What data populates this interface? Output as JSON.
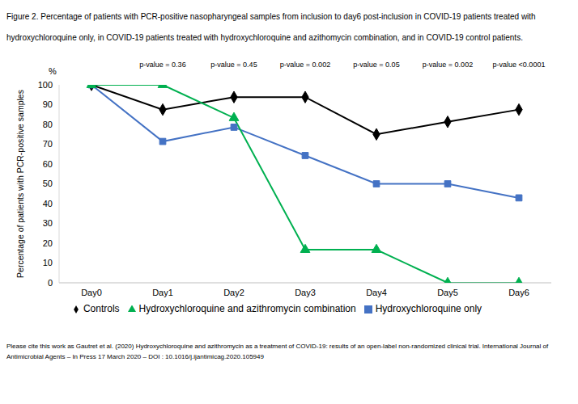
{
  "chart_data": {
    "type": "line",
    "title": "Figure 2. Percentage of patients with PCR-positive nasopharyngeal samples from inclusion to day6 post-inclusion in COVID-19 patients treated with hydroxychloroquine only, in COVID-19 patients treated with hydroxychloroquine and azithomycin combination, and in COVID-19 control patients.",
    "y_label": "Percentage of patients with PCR-positive samples",
    "y_unit": "%",
    "categories": [
      "Day0",
      "Day1",
      "Day2",
      "Day3",
      "Day4",
      "Day5",
      "Day6"
    ],
    "series": [
      {
        "name": "Controls",
        "color": "#000000",
        "marker": "diamond",
        "values": [
          100,
          87.5,
          93.8,
          93.8,
          75,
          81.3,
          87.5
        ]
      },
      {
        "name": "Hydroxychloroquine only",
        "color": "#4472c4",
        "marker": "square",
        "values": [
          100,
          71.4,
          78.6,
          64.3,
          50,
          50,
          42.9
        ]
      },
      {
        "name": "Hydroxychloroquine and azithromycin combination",
        "color": "#00b050",
        "marker": "triangle",
        "values": [
          100,
          100,
          83.3,
          16.7,
          16.7,
          0,
          0
        ]
      }
    ],
    "ylim": [
      0,
      100
    ],
    "yticks": [
      0,
      10,
      20,
      30,
      40,
      50,
      60,
      70,
      80,
      90,
      100
    ],
    "grid": false,
    "legend": "bottom",
    "annotations": [
      {
        "x": "Day1",
        "text": "p-value = 0.36"
      },
      {
        "x": "Day2",
        "text": "p-value = 0.45"
      },
      {
        "x": "Day3",
        "text": "p-value = 0.002"
      },
      {
        "x": "Day4",
        "text": "p-value = 0.05"
      },
      {
        "x": "Day5",
        "text": "p-value = 0.002"
      },
      {
        "x": "Day6",
        "text": "p-value <0.0001"
      }
    ],
    "footnote": "Please cite this work as Gautret et al. (2020) Hydroxychloroquine and azithromycin as a treatment of COVID-19: results of an open-label non-randomized clinical trial. International Journal of Antimicrobial Agents – In Press 17 March 2020 – DOI : 10.1016/j.ijantimicag.2020.105949"
  }
}
